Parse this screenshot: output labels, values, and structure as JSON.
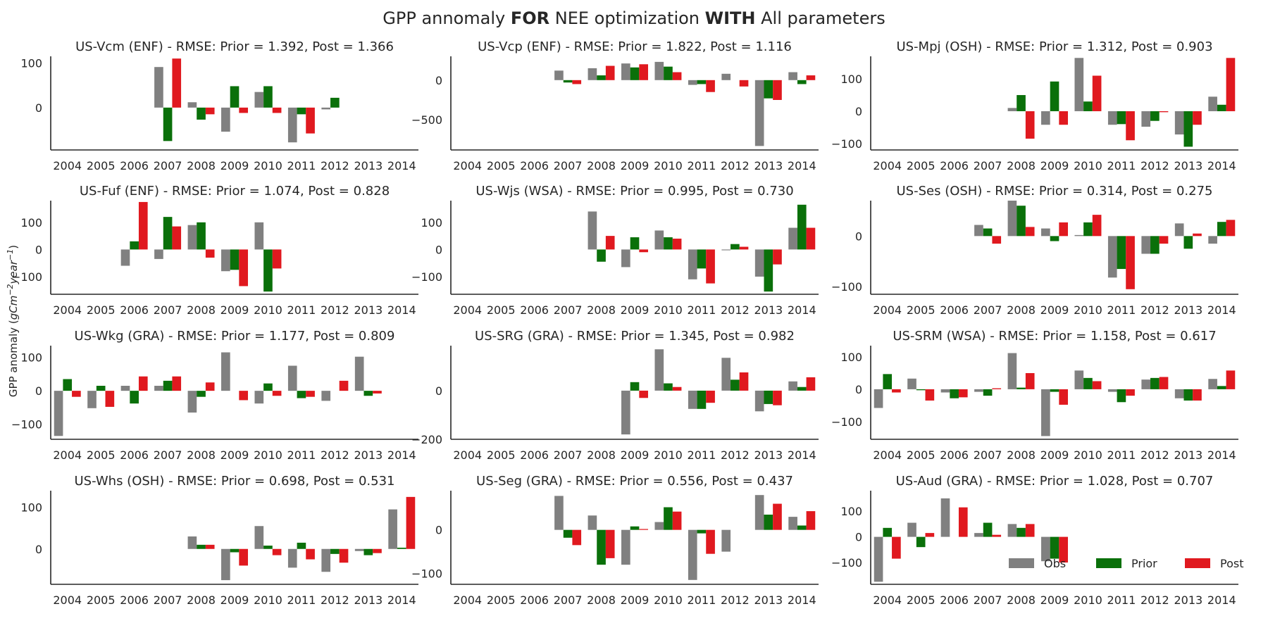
{
  "figure": {
    "title_parts": [
      {
        "text": "GPP annomaly ",
        "bold": false
      },
      {
        "text": "FOR",
        "bold": true
      },
      {
        "text": " NEE optimization ",
        "bold": false
      },
      {
        "text": "WITH",
        "bold": true
      },
      {
        "text": " All parameters",
        "bold": false
      }
    ],
    "ylabel": "GPP anomaly (gCm^-2year^-1)",
    "colors": {
      "Obs": "#808080",
      "Prior": "#0a700a",
      "Post": "#e0191f"
    },
    "legend": {
      "placement": "lower-right of last panel",
      "entries": [
        "Obs",
        "Prior",
        "Post"
      ]
    }
  },
  "chart_data": [
    {
      "type": "bar",
      "title": "US-Vcm (ENF) - RMSE: Prior = 1.392, Post = 1.366",
      "categories": [
        "2004",
        "2005",
        "2006",
        "2007",
        "2008",
        "2009",
        "2010",
        "2011",
        "2012",
        "2013",
        "2014"
      ],
      "ylim": [
        -95,
        115
      ],
      "yticks": [
        0,
        100
      ],
      "series": [
        {
          "name": "Obs",
          "values": [
            null,
            null,
            null,
            91,
            12,
            -54,
            35,
            -78,
            -4,
            null,
            null
          ]
        },
        {
          "name": "Prior",
          "values": [
            null,
            null,
            null,
            -75,
            -27,
            48,
            48,
            -15,
            22,
            null,
            null
          ]
        },
        {
          "name": "Post",
          "values": [
            null,
            null,
            null,
            110,
            -15,
            -12,
            -12,
            -58,
            null,
            null,
            null
          ]
        }
      ]
    },
    {
      "type": "bar",
      "title": "US-Vcp (ENF) - RMSE: Prior = 1.822, Post = 1.116",
      "categories": [
        "2004",
        "2005",
        "2006",
        "2007",
        "2008",
        "2009",
        "2010",
        "2011",
        "2012",
        "2013",
        "2014"
      ],
      "ylim": [
        -880,
        300
      ],
      "yticks": [
        -500,
        0
      ],
      "series": [
        {
          "name": "Obs",
          "values": [
            null,
            null,
            null,
            120,
            150,
            210,
            230,
            -60,
            80,
            -830,
            100
          ]
        },
        {
          "name": "Prior",
          "values": [
            null,
            null,
            null,
            -30,
            60,
            160,
            170,
            -50,
            null,
            -230,
            -50
          ]
        },
        {
          "name": "Post",
          "values": [
            null,
            null,
            null,
            -50,
            180,
            200,
            100,
            -150,
            -80,
            -250,
            60
          ]
        }
      ]
    },
    {
      "type": "bar",
      "title": "US-Mpj (OSH) - RMSE: Prior = 1.312, Post = 0.903",
      "categories": [
        "2004",
        "2005",
        "2006",
        "2007",
        "2008",
        "2009",
        "2010",
        "2011",
        "2012",
        "2013",
        "2014"
      ],
      "ylim": [
        -120,
        170
      ],
      "yticks": [
        -100,
        0,
        100
      ],
      "series": [
        {
          "name": "Obs",
          "values": [
            null,
            null,
            null,
            null,
            10,
            -42,
            165,
            -42,
            -48,
            -72,
            45
          ]
        },
        {
          "name": "Prior",
          "values": [
            null,
            null,
            null,
            null,
            50,
            92,
            30,
            -40,
            -30,
            -110,
            20
          ]
        },
        {
          "name": "Post",
          "values": [
            null,
            null,
            null,
            null,
            -85,
            -42,
            110,
            -90,
            -3,
            -42,
            165
          ]
        }
      ]
    },
    {
      "type": "bar",
      "title": "US-Fuf (ENF) - RMSE: Prior = 1.074, Post = 0.828",
      "categories": [
        "2004",
        "2005",
        "2006",
        "2007",
        "2008",
        "2009",
        "2010",
        "2011",
        "2012",
        "2013",
        "2014"
      ],
      "ylim": [
        -165,
        180
      ],
      "yticks": [
        -100,
        0,
        100
      ],
      "series": [
        {
          "name": "Obs",
          "values": [
            null,
            null,
            -60,
            -35,
            90,
            -80,
            100,
            null,
            null,
            null,
            null
          ]
        },
        {
          "name": "Prior",
          "values": [
            null,
            null,
            30,
            120,
            100,
            -75,
            -155,
            null,
            null,
            null,
            null
          ]
        },
        {
          "name": "Post",
          "values": [
            null,
            null,
            175,
            85,
            -30,
            -135,
            -70,
            null,
            null,
            null,
            null
          ]
        }
      ]
    },
    {
      "type": "bar",
      "title": "US-Wjs (WSA) - RMSE: Prior = 0.995, Post = 0.730",
      "categories": [
        "2004",
        "2005",
        "2006",
        "2007",
        "2008",
        "2009",
        "2010",
        "2011",
        "2012",
        "2013",
        "2014"
      ],
      "ylim": [
        -165,
        180
      ],
      "yticks": [
        -100,
        0,
        100
      ],
      "series": [
        {
          "name": "Obs",
          "values": [
            null,
            null,
            null,
            null,
            140,
            -65,
            70,
            -110,
            -3,
            -100,
            80
          ]
        },
        {
          "name": "Prior",
          "values": [
            null,
            null,
            null,
            null,
            -45,
            45,
            45,
            -70,
            20,
            -155,
            165
          ]
        },
        {
          "name": "Post",
          "values": [
            null,
            null,
            null,
            null,
            50,
            -10,
            40,
            -125,
            10,
            -55,
            80
          ]
        }
      ]
    },
    {
      "type": "bar",
      "title": "US-Ses (OSH) - RMSE: Prior = 0.314, Post = 0.275",
      "categories": [
        "2004",
        "2005",
        "2006",
        "2007",
        "2008",
        "2009",
        "2010",
        "2011",
        "2012",
        "2013",
        "2014"
      ],
      "ylim": [
        -115,
        70
      ],
      "yticks": [
        -100,
        0
      ],
      "series": [
        {
          "name": "Obs",
          "values": [
            null,
            null,
            null,
            22,
            70,
            15,
            2,
            -82,
            -35,
            25,
            -15
          ]
        },
        {
          "name": "Prior",
          "values": [
            null,
            null,
            null,
            15,
            60,
            -10,
            27,
            -65,
            -35,
            -25,
            28
          ]
        },
        {
          "name": "Post",
          "values": [
            null,
            null,
            null,
            -15,
            18,
            27,
            42,
            -105,
            -15,
            5,
            32
          ]
        }
      ]
    },
    {
      "type": "bar",
      "title": "US-Wkg (GRA) - RMSE: Prior = 1.177, Post = 0.809",
      "categories": [
        "2004",
        "2005",
        "2006",
        "2007",
        "2008",
        "2009",
        "2010",
        "2011",
        "2012",
        "2013",
        "2014"
      ],
      "ylim": [
        -145,
        135
      ],
      "yticks": [
        -100,
        0,
        100
      ],
      "series": [
        {
          "name": "Obs",
          "values": [
            -135,
            -52,
            15,
            15,
            -65,
            115,
            -38,
            75,
            -30,
            102,
            null
          ]
        },
        {
          "name": "Prior",
          "values": [
            35,
            15,
            -38,
            30,
            -18,
            null,
            22,
            -22,
            null,
            -15,
            null
          ]
        },
        {
          "name": "Post",
          "values": [
            -18,
            -48,
            43,
            43,
            25,
            -28,
            -15,
            -18,
            30,
            -8,
            null
          ]
        }
      ]
    },
    {
      "type": "bar",
      "title": "US-SRG (GRA) - RMSE: Prior = 1.345, Post = 0.982",
      "categories": [
        "2004",
        "2005",
        "2006",
        "2007",
        "2008",
        "2009",
        "2010",
        "2011",
        "2012",
        "2013",
        "2014"
      ],
      "ylim": [
        -200,
        185
      ],
      "yticks": [
        -200,
        0
      ],
      "series": [
        {
          "name": "Obs",
          "values": [
            null,
            null,
            null,
            null,
            null,
            -180,
            170,
            -75,
            135,
            -85,
            38
          ]
        },
        {
          "name": "Prior",
          "values": [
            null,
            null,
            null,
            null,
            null,
            35,
            30,
            -75,
            45,
            -55,
            15
          ]
        },
        {
          "name": "Post",
          "values": [
            null,
            null,
            null,
            null,
            null,
            -30,
            15,
            -50,
            75,
            -60,
            55
          ]
        }
      ]
    },
    {
      "type": "bar",
      "title": "US-SRM (WSA) - RMSE: Prior = 1.158, Post = 0.617",
      "categories": [
        "2004",
        "2005",
        "2006",
        "2007",
        "2008",
        "2009",
        "2010",
        "2011",
        "2012",
        "2013",
        "2014"
      ],
      "ylim": [
        -155,
        135
      ],
      "yticks": [
        -100,
        0,
        100
      ],
      "series": [
        {
          "name": "Obs",
          "values": [
            -58,
            33,
            -10,
            -8,
            112,
            -145,
            58,
            -8,
            30,
            -28,
            32
          ]
        },
        {
          "name": "Prior",
          "values": [
            47,
            -3,
            -28,
            -20,
            5,
            -8,
            35,
            -40,
            35,
            -35,
            10
          ]
        },
        {
          "name": "Post",
          "values": [
            -10,
            -35,
            -25,
            3,
            50,
            -48,
            25,
            -20,
            38,
            -35,
            58
          ]
        }
      ]
    },
    {
      "type": "bar",
      "title": "US-Whs (OSH) - RMSE: Prior = 0.698, Post = 0.531",
      "categories": [
        "2004",
        "2005",
        "2006",
        "2007",
        "2008",
        "2009",
        "2010",
        "2011",
        "2012",
        "2013",
        "2014"
      ],
      "ylim": [
        -85,
        140
      ],
      "yticks": [
        0,
        100
      ],
      "series": [
        {
          "name": "Obs",
          "values": [
            null,
            null,
            null,
            null,
            30,
            -75,
            55,
            -45,
            -55,
            -5,
            95
          ]
        },
        {
          "name": "Prior",
          "values": [
            null,
            null,
            null,
            null,
            10,
            -8,
            8,
            15,
            -12,
            -15,
            3
          ]
        },
        {
          "name": "Post",
          "values": [
            null,
            null,
            null,
            null,
            10,
            -40,
            -15,
            -25,
            -33,
            -10,
            125
          ]
        }
      ]
    },
    {
      "type": "bar",
      "title": "US-Seg (GRA) - RMSE: Prior = 0.556, Post = 0.437",
      "categories": [
        "2004",
        "2005",
        "2006",
        "2007",
        "2008",
        "2009",
        "2010",
        "2011",
        "2012",
        "2013",
        "2014"
      ],
      "ylim": [
        -125,
        90
      ],
      "yticks": [
        -100,
        0
      ],
      "series": [
        {
          "name": "Obs",
          "values": [
            null,
            null,
            null,
            78,
            33,
            -80,
            18,
            -115,
            -50,
            80,
            30
          ]
        },
        {
          "name": "Prior",
          "values": [
            null,
            null,
            null,
            -18,
            -80,
            8,
            52,
            -8,
            null,
            35,
            10
          ]
        },
        {
          "name": "Post",
          "values": [
            null,
            null,
            null,
            -35,
            -65,
            2,
            42,
            -55,
            null,
            60,
            43
          ]
        }
      ]
    },
    {
      "type": "bar",
      "title": "US-Aud (GRA) - RMSE: Prior = 1.028, Post = 0.707",
      "categories": [
        "2004",
        "2005",
        "2006",
        "2007",
        "2008",
        "2009",
        "2010",
        "2011",
        "2012",
        "2013",
        "2014"
      ],
      "ylim": [
        -185,
        180
      ],
      "yticks": [
        -100,
        0,
        100
      ],
      "series": [
        {
          "name": "Obs",
          "values": [
            -175,
            55,
            150,
            15,
            50,
            -95,
            null,
            null,
            null,
            null,
            null
          ]
        },
        {
          "name": "Prior",
          "values": [
            35,
            -40,
            null,
            55,
            35,
            -85,
            null,
            null,
            null,
            null,
            null
          ]
        },
        {
          "name": "Post",
          "values": [
            -85,
            15,
            115,
            8,
            50,
            -100,
            null,
            null,
            null,
            null,
            null
          ]
        }
      ]
    }
  ]
}
